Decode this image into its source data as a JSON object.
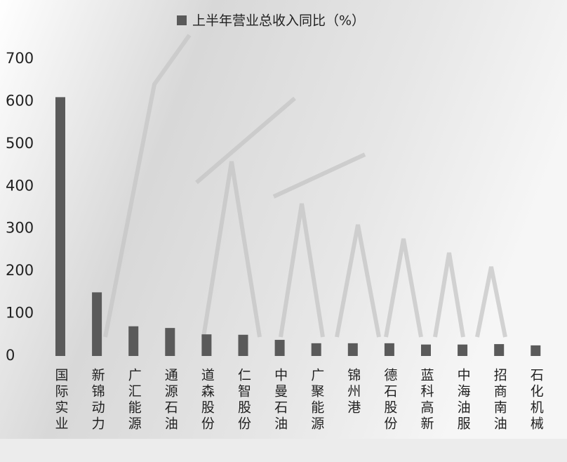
{
  "chart_data": {
    "type": "bar",
    "categories": [
      "国际实业",
      "新锦动力",
      "广汇能源",
      "通源石油",
      "道森股份",
      "仁智股份",
      "中曼石油",
      "广聚能源",
      "锦州港",
      "德石股份",
      "蓝科高新",
      "中海油服",
      "招商南油",
      "石化机械"
    ],
    "series": [
      {
        "name": "上半年营业总收入同比（%）",
        "color": "#5a5a5a",
        "values": [
          610,
          150,
          70,
          66,
          51,
          50,
          38,
          30,
          30,
          30,
          27,
          27,
          28,
          25
        ]
      }
    ],
    "ylim": [
      0,
      700
    ],
    "yticks": [
      0,
      100,
      200,
      300,
      400,
      500,
      600,
      700
    ],
    "grid": false
  }
}
